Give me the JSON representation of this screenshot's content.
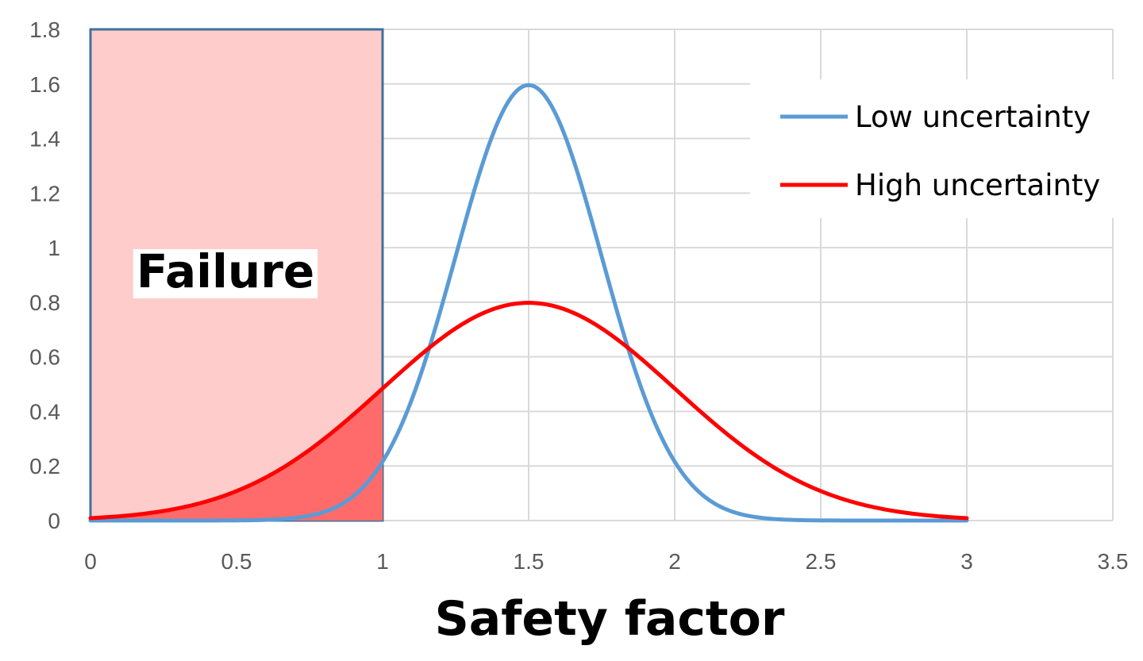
{
  "chart_data": {
    "type": "line",
    "xlabel": "Safety factor",
    "ylabel": "",
    "xlim": [
      0,
      3.5
    ],
    "ylim": [
      0,
      1.8
    ],
    "x_ticks": [
      "0",
      "0.5",
      "1",
      "1.5",
      "2",
      "2.5",
      "3",
      "3.5"
    ],
    "y_ticks": [
      "0",
      "0.2",
      "0.4",
      "0.6",
      "0.8",
      "1",
      "1.2",
      "1.4",
      "1.6",
      "1.8"
    ],
    "grid": true,
    "legend_position": "top-right",
    "series": [
      {
        "name": "Low uncertainty",
        "color": "#5b9bd5",
        "mean": 1.5,
        "sd": 0.25,
        "x_range": [
          0,
          3
        ],
        "peak": 1.6
      },
      {
        "name": "High uncertainty",
        "color": "#ff0000",
        "mean": 1.5,
        "sd": 0.5,
        "x_range": [
          0,
          3
        ],
        "peak": 0.8
      }
    ],
    "regions": [
      {
        "label": "Failure",
        "x_from": 0,
        "x_to": 1,
        "fill": "#ffcccc",
        "border": "#41719c"
      }
    ]
  }
}
